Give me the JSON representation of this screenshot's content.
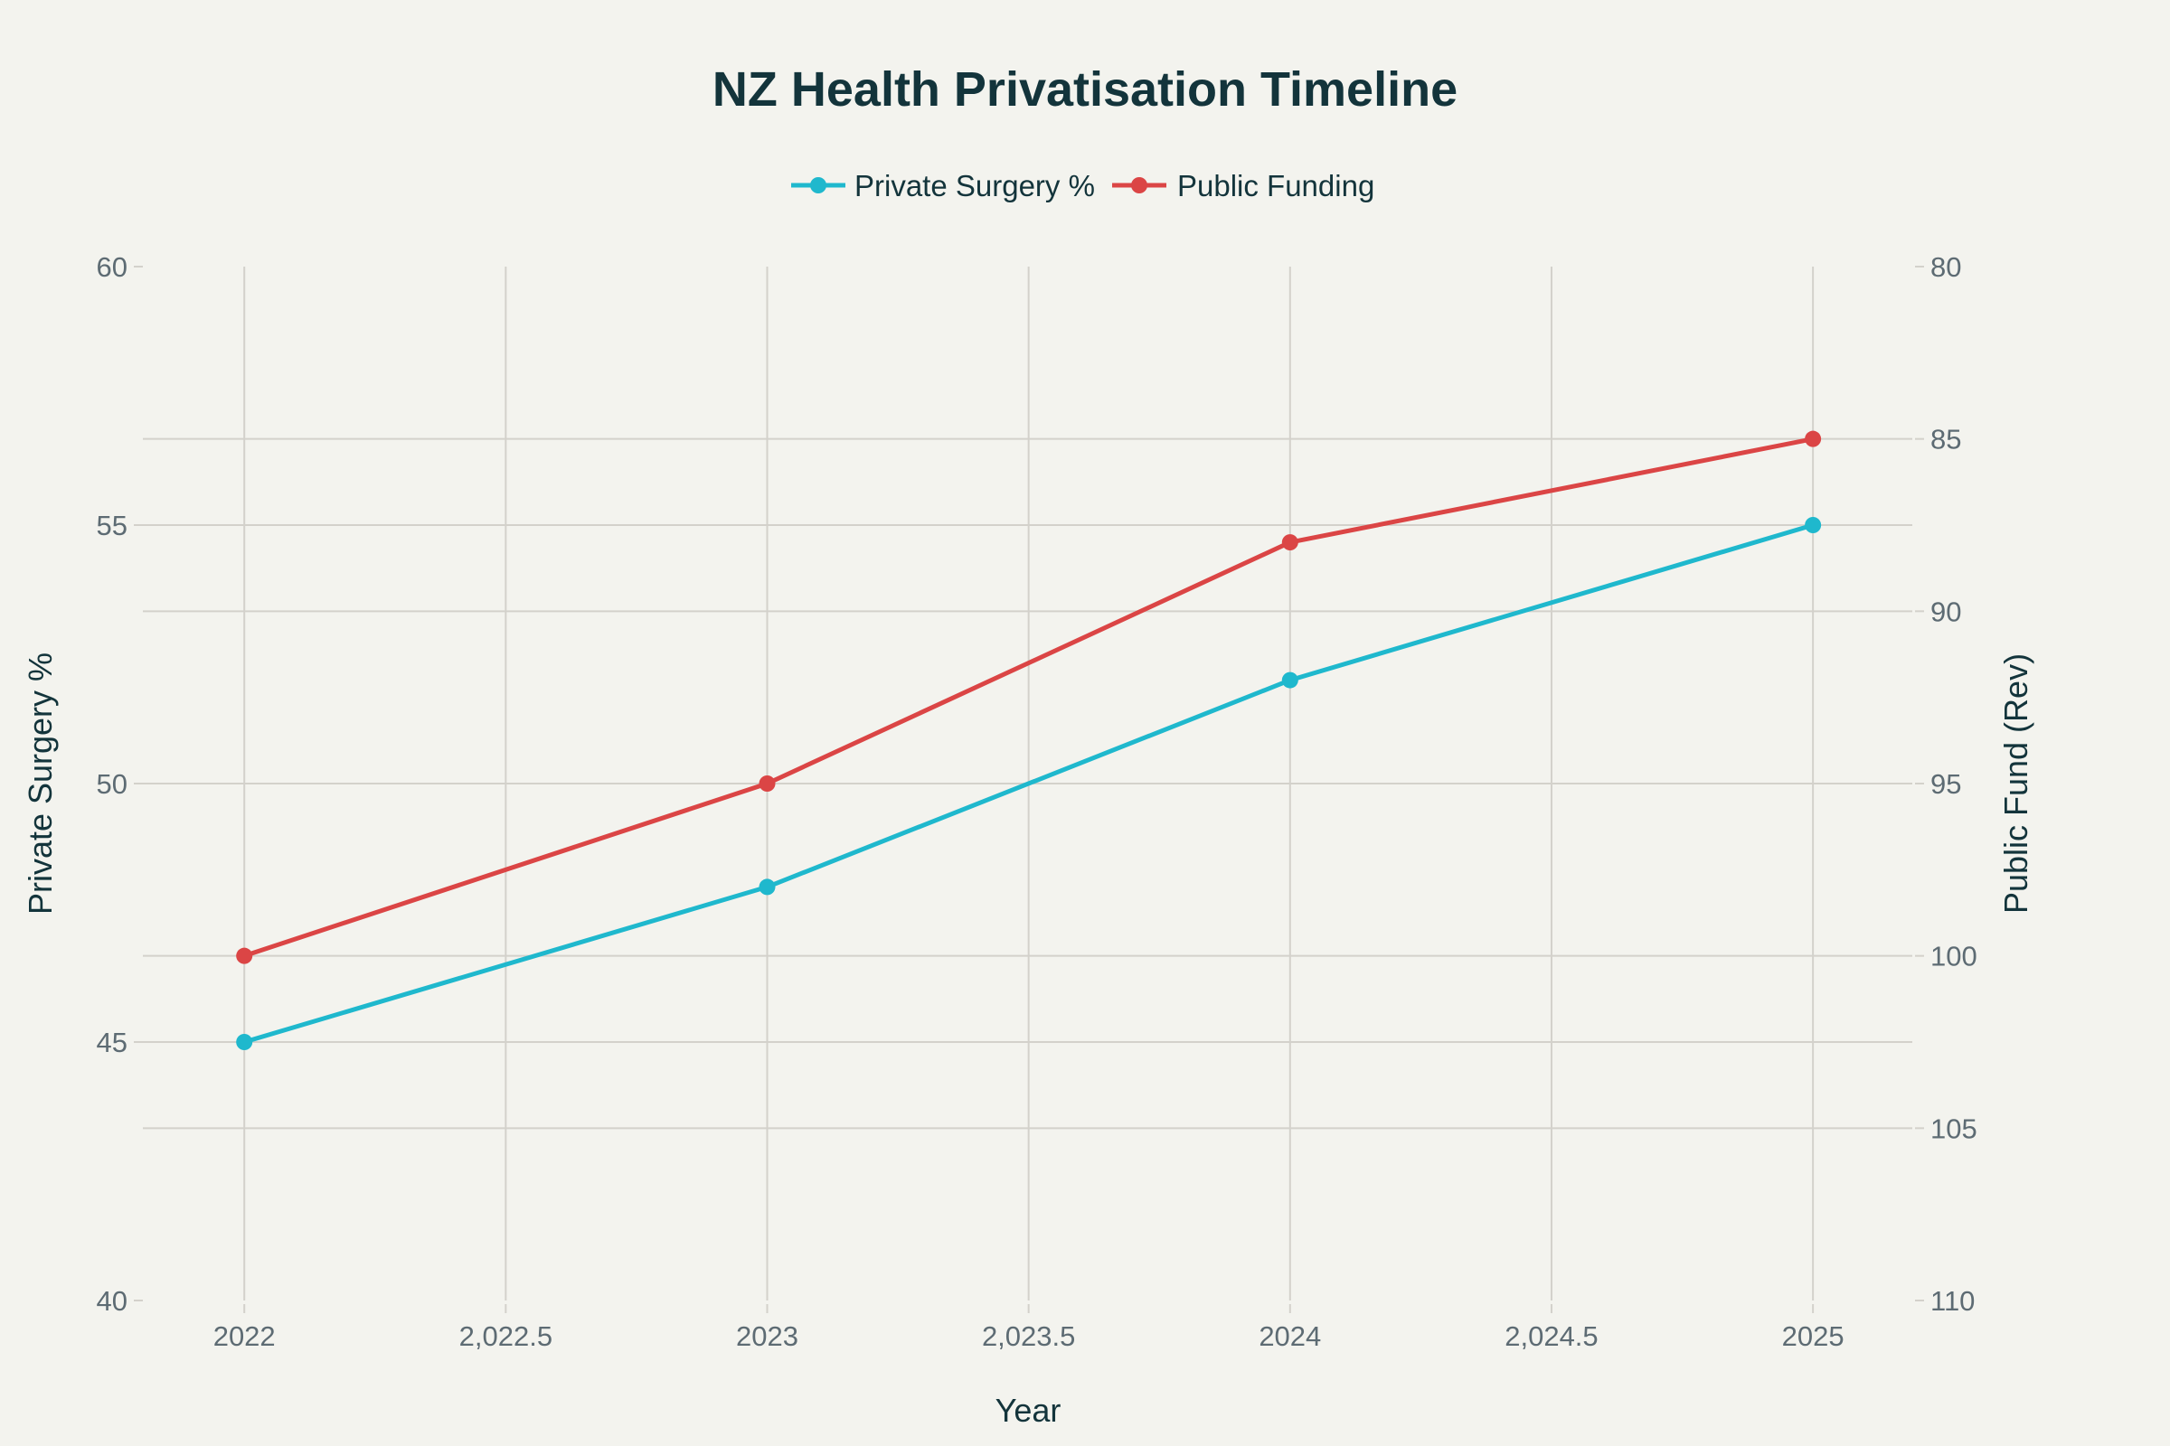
{
  "chart_data": {
    "type": "line",
    "title": "NZ Health Privatisation Timeline",
    "xlabel": "Year",
    "ylabel": "Private Surgery %",
    "y2label": "Public Fund (Rev)",
    "x": [
      2022,
      2023,
      2024,
      2025
    ],
    "xlim": [
      2021.806,
      2025.19
    ],
    "xticks": [
      2022,
      2022.5,
      2023,
      2023.5,
      2024,
      2024.5,
      2025
    ],
    "xtick_labels": [
      "2022",
      "2,022.5",
      "2023",
      "2,023.5",
      "2024",
      "2,024.5",
      "2025"
    ],
    "ylim": [
      40,
      60
    ],
    "yticks": [
      40,
      45,
      50,
      55,
      60
    ],
    "ytick_labels": [
      "40",
      "45",
      "50",
      "55",
      "60"
    ],
    "y2lim": [
      80,
      110
    ],
    "y2_reversed": true,
    "y2ticks": [
      80,
      85,
      90,
      95,
      100,
      105,
      110
    ],
    "y2tick_labels": [
      "80",
      "85",
      "90",
      "95",
      "100",
      "105",
      "110"
    ],
    "grid": true,
    "legend_position": "top-center",
    "series": [
      {
        "name": "Private Surgery %",
        "axis": "y",
        "color": "#1FB8CD",
        "values": [
          45,
          48,
          52,
          55
        ]
      },
      {
        "name": "Public Funding",
        "axis": "y2",
        "color": "#DB4545",
        "values": [
          100,
          95,
          88,
          85
        ]
      }
    ]
  }
}
